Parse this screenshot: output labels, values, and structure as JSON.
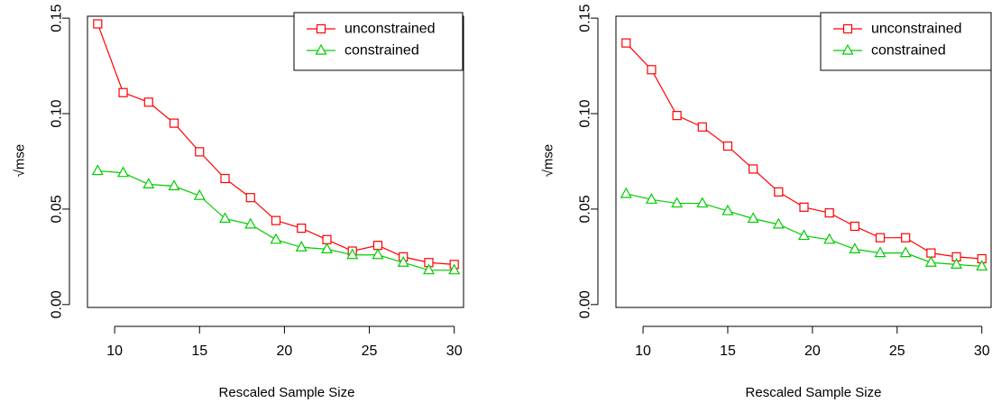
{
  "chart_data": [
    {
      "type": "line",
      "xlabel": "Rescaled Sample Size",
      "ylabel": "√mse",
      "xlim": [
        8.4,
        30.6
      ],
      "ylim": [
        -0.0015,
        0.151
      ],
      "xticks": [
        "10",
        "15",
        "20",
        "25",
        "30"
      ],
      "yticks": [
        "0.00",
        "0.05",
        "0.10",
        "0.15"
      ],
      "legend_position": "top-right",
      "x": [
        9,
        10.5,
        12,
        13.5,
        15,
        16.5,
        18,
        19.5,
        21,
        22.5,
        24,
        25.5,
        27,
        28.5,
        30
      ],
      "series": [
        {
          "name": "unconstrained",
          "color": "#ff0000",
          "marker": "square",
          "values": [
            0.147,
            0.111,
            0.106,
            0.095,
            0.08,
            0.066,
            0.056,
            0.044,
            0.04,
            0.034,
            0.028,
            0.031,
            0.025,
            0.022,
            0.021
          ]
        },
        {
          "name": "constrained",
          "color": "#00cd00",
          "marker": "triangle",
          "values": [
            0.07,
            0.069,
            0.063,
            0.062,
            0.057,
            0.045,
            0.042,
            0.034,
            0.03,
            0.029,
            0.026,
            0.026,
            0.022,
            0.018,
            0.018
          ]
        }
      ]
    },
    {
      "type": "line",
      "xlabel": "Rescaled Sample Size",
      "ylabel": "√mse",
      "xlim": [
        8.4,
        30.6
      ],
      "ylim": [
        -0.0015,
        0.151
      ],
      "xticks": [
        "10",
        "15",
        "20",
        "25",
        "30"
      ],
      "yticks": [
        "0.00",
        "0.05",
        "0.10",
        "0.15"
      ],
      "legend_position": "top-right",
      "x": [
        9,
        10.5,
        12,
        13.5,
        15,
        16.5,
        18,
        19.5,
        21,
        22.5,
        24,
        25.5,
        27,
        28.5,
        30
      ],
      "series": [
        {
          "name": "unconstrained",
          "color": "#ff0000",
          "marker": "square",
          "values": [
            0.137,
            0.123,
            0.099,
            0.093,
            0.083,
            0.071,
            0.059,
            0.051,
            0.048,
            0.041,
            0.035,
            0.035,
            0.027,
            0.025,
            0.024
          ]
        },
        {
          "name": "constrained",
          "color": "#00cd00",
          "marker": "triangle",
          "values": [
            0.058,
            0.055,
            0.053,
            0.053,
            0.049,
            0.045,
            0.042,
            0.036,
            0.034,
            0.029,
            0.027,
            0.027,
            0.022,
            0.021,
            0.02
          ]
        }
      ]
    }
  ]
}
